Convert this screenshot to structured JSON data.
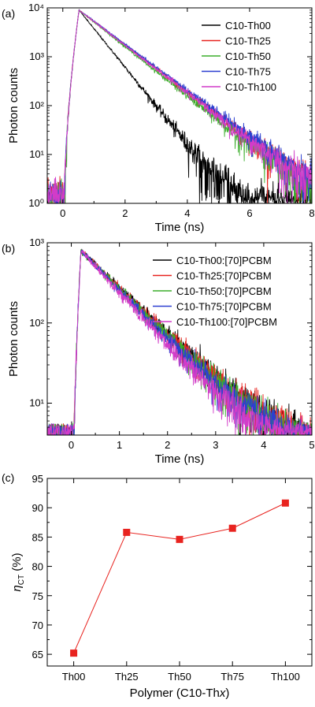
{
  "colors": {
    "black": "#000000",
    "red": "#e8231f",
    "green": "#3cae2c",
    "blue": "#2c3fd0",
    "magenta": "#d23cc8",
    "marker_red": "#e8231f"
  },
  "chart_data": [
    {
      "type": "line",
      "panel_label": "(a)",
      "xlabel": "Time (ns)",
      "ylabel": "Photon counts",
      "xlim": [
        -0.5,
        8
      ],
      "ylim": [
        1,
        10000
      ],
      "yscale": "log",
      "xticks": [
        0,
        2,
        4,
        6,
        8
      ],
      "xtick_labels": [
        "0",
        "2",
        "4",
        "6",
        "8"
      ],
      "yticks": [
        1,
        10,
        100,
        1000,
        10000
      ],
      "ytick_labels": [
        "10⁰",
        "10¹",
        "10²",
        "10³",
        "10⁴"
      ],
      "legend_position": "top-right",
      "series": [
        {
          "name": "C10-Th00",
          "color": "#000000",
          "rise_start": 0.05,
          "peak_x": 0.52,
          "peak": 9000,
          "tau": 0.55,
          "noise_floor": 1.5
        },
        {
          "name": "C10-Th25",
          "color": "#e8231f",
          "rise_start": 0.05,
          "peak_x": 0.52,
          "peak": 9000,
          "tau": 0.9,
          "noise_floor": 1.5
        },
        {
          "name": "C10-Th50",
          "color": "#3cae2c",
          "rise_start": 0.05,
          "peak_x": 0.52,
          "peak": 9000,
          "tau": 0.86,
          "noise_floor": 1.5
        },
        {
          "name": "C10-Th75",
          "color": "#2c3fd0",
          "rise_start": 0.05,
          "peak_x": 0.52,
          "peak": 9000,
          "tau": 0.92,
          "noise_floor": 1.5
        },
        {
          "name": "C10-Th100",
          "color": "#d23cc8",
          "rise_start": 0.05,
          "peak_x": 0.52,
          "peak": 9000,
          "tau": 0.89,
          "noise_floor": 1.5
        }
      ]
    },
    {
      "type": "line",
      "panel_label": "(b)",
      "xlabel": "Time (ns)",
      "ylabel": "Photon counts",
      "xlim": [
        -0.5,
        5
      ],
      "ylim": [
        4,
        1000
      ],
      "yscale": "log",
      "xticks": [
        0,
        1,
        2,
        3,
        4,
        5
      ],
      "xtick_labels": [
        "0",
        "1",
        "2",
        "3",
        "4",
        "5"
      ],
      "yticks": [
        10,
        100,
        1000
      ],
      "ytick_labels": [
        "10¹",
        "10²",
        "10³"
      ],
      "legend_position": "top-right",
      "series": [
        {
          "name": "C10-Th00:[70]PCBM",
          "color": "#000000",
          "rise_start": 0.05,
          "peak_x": 0.2,
          "peak": 800,
          "tau": 0.75,
          "noise_floor": 5
        },
        {
          "name": "C10-Th25:[70]PCBM",
          "color": "#e8231f",
          "rise_start": 0.05,
          "peak_x": 0.2,
          "peak": 800,
          "tau": 0.74,
          "noise_floor": 5
        },
        {
          "name": "C10-Th50:[70]PCBM",
          "color": "#3cae2c",
          "rise_start": 0.05,
          "peak_x": 0.2,
          "peak": 800,
          "tau": 0.72,
          "noise_floor": 5
        },
        {
          "name": "C10-Th75:[70]PCBM",
          "color": "#2c3fd0",
          "rise_start": 0.05,
          "peak_x": 0.2,
          "peak": 800,
          "tau": 0.7,
          "noise_floor": 5
        },
        {
          "name": "C10-Th100:[70]PCBM",
          "color": "#d23cc8",
          "rise_start": 0.05,
          "peak_x": 0.2,
          "peak": 800,
          "tau": 0.66,
          "noise_floor": 5
        }
      ]
    },
    {
      "type": "line",
      "panel_label": "(c)",
      "xlabel_main": "Polymer (C10-Th",
      "xlabel_italic": "x",
      "xlabel_end": ")",
      "ylabel_symbol": "η",
      "ylabel_sub": "CT",
      "ylabel_unit": " (%)",
      "ylim": [
        63,
        95
      ],
      "yticks": [
        65,
        70,
        75,
        80,
        85,
        90,
        95
      ],
      "ytick_labels": [
        "65",
        "70",
        "75",
        "80",
        "85",
        "90",
        "95"
      ],
      "categories": [
        "Th00",
        "Th25",
        "Th50",
        "Th75",
        "Th100"
      ],
      "values": [
        65.2,
        85.8,
        84.6,
        86.5,
        90.8
      ],
      "marker": "square",
      "color": "#e8231f"
    }
  ]
}
